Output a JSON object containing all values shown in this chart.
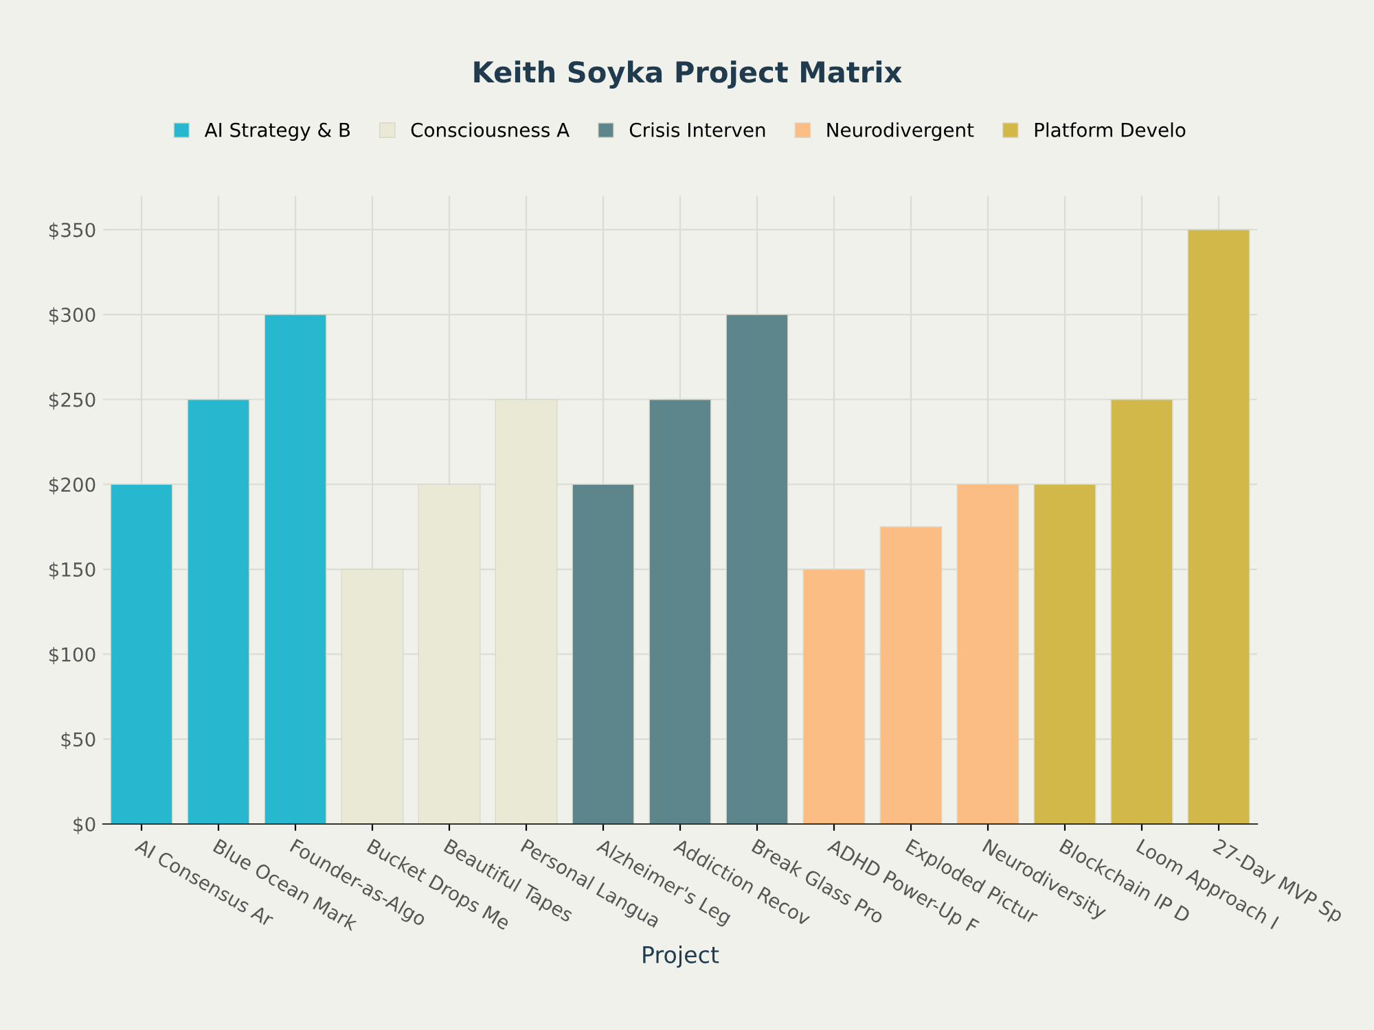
{
  "chart_data": {
    "type": "bar",
    "title": "Keith Soyka Project Matrix",
    "xlabel": "Project",
    "categories": [
      "AI Consensus Ar",
      "Blue Ocean Mark",
      "Founder-as-Algo",
      "Bucket Drops Me",
      "Beautiful Tapes",
      "Personal Langua",
      "Alzheimer's Leg",
      "Addiction Recov",
      "Break Glass Pro",
      "ADHD Power-Up F",
      "Exploded Pictur",
      "Neurodiversity",
      "Blockchain IP D",
      "Loom Approach I",
      "27-Day MVP Sp"
    ],
    "series": [
      {
        "name": "AI Strategy & B",
        "color": "#27b8cf",
        "values": [
          200,
          250,
          300,
          null,
          null,
          null,
          null,
          null,
          null,
          null,
          null,
          null,
          null,
          null,
          null
        ]
      },
      {
        "name": "Consciousness A",
        "color": "#eae9d6",
        "values": [
          null,
          null,
          null,
          150,
          200,
          250,
          null,
          null,
          null,
          null,
          null,
          null,
          null,
          null,
          null
        ]
      },
      {
        "name": "Crisis Interven",
        "color": "#5c868c",
        "values": [
          null,
          null,
          null,
          null,
          null,
          null,
          200,
          250,
          300,
          null,
          null,
          null,
          null,
          null,
          null
        ]
      },
      {
        "name": "Neurodivergent",
        "color": "#fcbd84",
        "values": [
          null,
          null,
          null,
          null,
          null,
          null,
          null,
          null,
          null,
          150,
          175,
          200,
          null,
          null,
          null
        ]
      },
      {
        "name": "Platform Develo",
        "color": "#d1b848",
        "values": [
          null,
          null,
          null,
          null,
          null,
          null,
          null,
          null,
          null,
          null,
          null,
          null,
          200,
          250,
          350
        ]
      }
    ],
    "ylim": [
      0,
      370
    ],
    "yticks": [
      {
        "value": 0,
        "label": "$0"
      },
      {
        "value": 50,
        "label": "$50"
      },
      {
        "value": 100,
        "label": "$100"
      },
      {
        "value": 150,
        "label": "$150"
      },
      {
        "value": 200,
        "label": "$200"
      },
      {
        "value": 250,
        "label": "$250"
      },
      {
        "value": 300,
        "label": "$300"
      },
      {
        "value": 350,
        "label": "$350"
      }
    ],
    "grid": true,
    "legend": "top"
  }
}
